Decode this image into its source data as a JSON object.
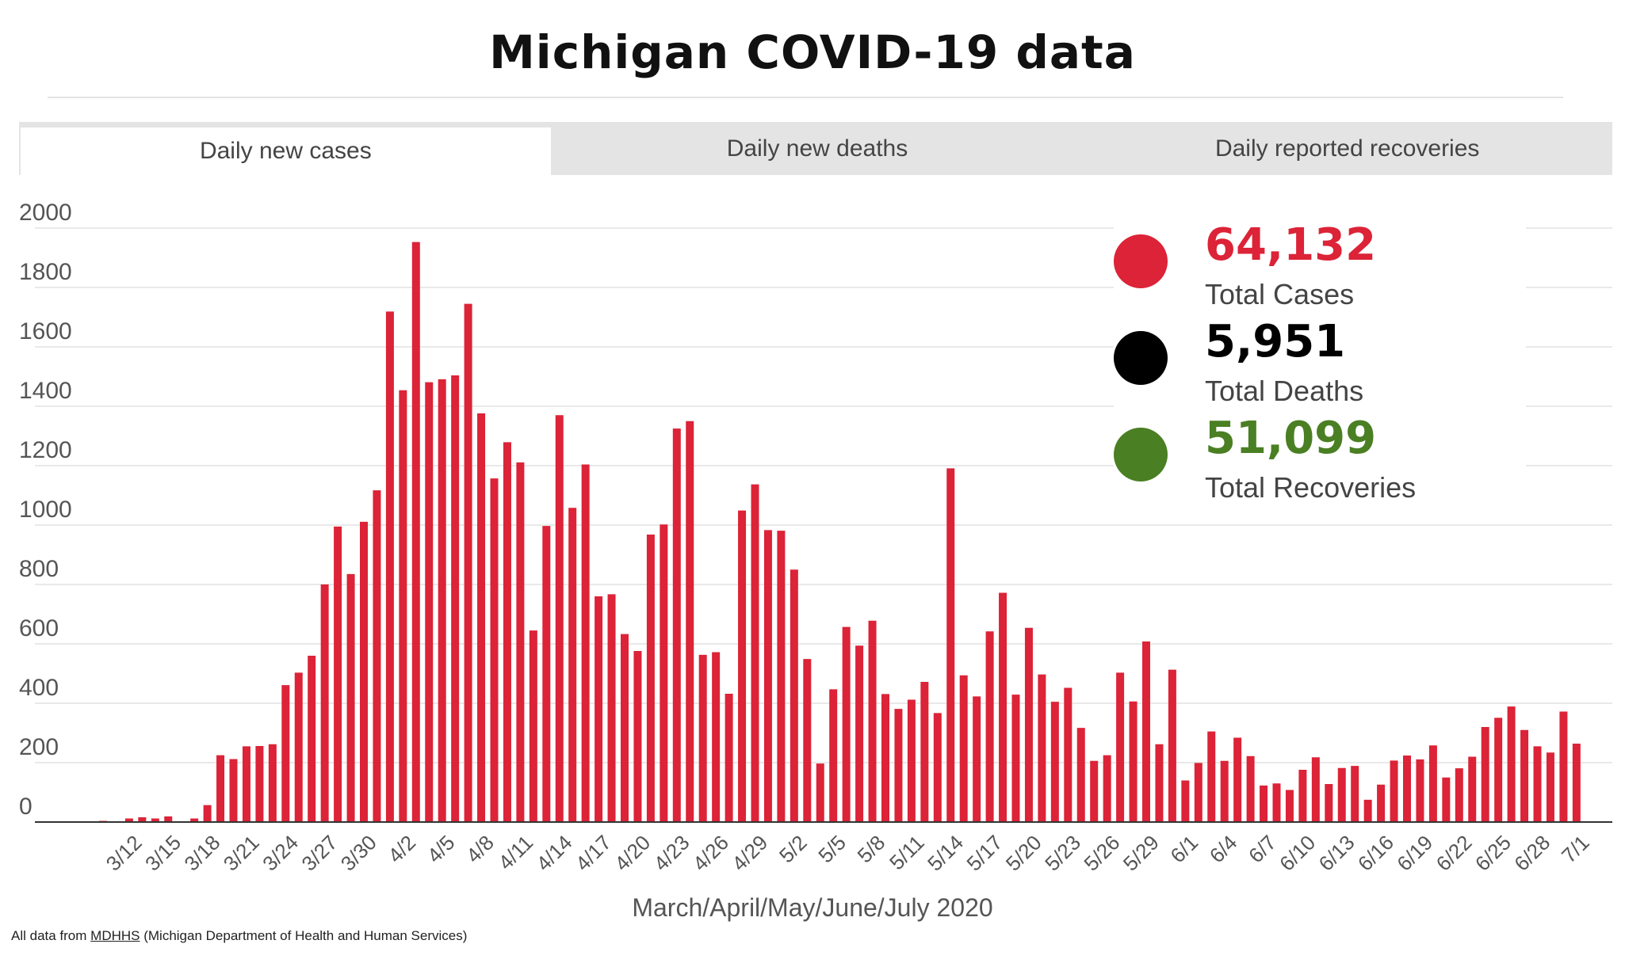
{
  "title": "Michigan COVID-19 data",
  "tabs": [
    {
      "label": "Daily new cases",
      "active": true
    },
    {
      "label": "Daily new deaths",
      "active": false
    },
    {
      "label": "Daily reported recoveries",
      "active": false
    }
  ],
  "totals": [
    {
      "value": "64,132",
      "label": "Total Cases",
      "color": "#dc2337"
    },
    {
      "value": "5,951",
      "label": "Total Deaths",
      "color": "#000000"
    },
    {
      "value": "51,099",
      "label": "Total Recoveries",
      "color": "#4a7f23"
    }
  ],
  "source": {
    "prefix": "All data from ",
    "link": "MDHHS",
    "suffix": " (Michigan Department of Health and Human Services)"
  },
  "chart_data": {
    "type": "bar",
    "xlabel": "March/April/May/June/July 2020",
    "ylabel": "",
    "ylim": [
      0,
      2000
    ],
    "yticks": [
      0,
      200,
      400,
      600,
      800,
      1000,
      1200,
      1400,
      1600,
      1800,
      2000
    ],
    "bar_color": "#dc2337",
    "grid": true,
    "tick_labels": [
      "3/12",
      "3/15",
      "3/18",
      "3/21",
      "3/24",
      "3/27",
      "3/30",
      "4/2",
      "4/5",
      "4/8",
      "4/11",
      "4/14",
      "4/17",
      "4/20",
      "4/23",
      "4/26",
      "4/29",
      "5/2",
      "5/5",
      "5/8",
      "5/11",
      "5/14",
      "5/17",
      "5/20",
      "5/23",
      "5/26",
      "5/29",
      "6/1",
      "6/4",
      "6/7",
      "6/10",
      "6/13",
      "6/16",
      "6/19",
      "6/22",
      "6/25",
      "6/28",
      "7/1"
    ],
    "categories": [
      "3/10",
      "3/11",
      "3/12",
      "3/13",
      "3/14",
      "3/15",
      "3/16",
      "3/17",
      "3/18",
      "3/19",
      "3/20",
      "3/21",
      "3/22",
      "3/23",
      "3/24",
      "3/25",
      "3/26",
      "3/27",
      "3/28",
      "3/29",
      "3/30",
      "3/31",
      "4/1",
      "4/2",
      "4/3",
      "4/4",
      "4/5",
      "4/6",
      "4/7",
      "4/8",
      "4/9",
      "4/10",
      "4/11",
      "4/12",
      "4/13",
      "4/14",
      "4/15",
      "4/16",
      "4/17",
      "4/18",
      "4/19",
      "4/20",
      "4/21",
      "4/22",
      "4/23",
      "4/24",
      "4/25",
      "4/26",
      "4/27",
      "4/28",
      "4/29",
      "4/30",
      "5/1",
      "5/2",
      "5/3",
      "5/4",
      "5/5",
      "5/6",
      "5/7",
      "5/8",
      "5/9",
      "5/10",
      "5/11",
      "5/12",
      "5/13",
      "5/14",
      "5/15",
      "5/16",
      "5/17",
      "5/18",
      "5/19",
      "5/20",
      "5/21",
      "5/22",
      "5/23",
      "5/24",
      "5/25",
      "5/26",
      "5/27",
      "5/28",
      "5/29",
      "5/30",
      "5/31",
      "6/1",
      "6/2",
      "6/3",
      "6/4",
      "6/5",
      "6/6",
      "6/7",
      "6/8",
      "6/9",
      "6/10",
      "6/11",
      "6/12",
      "6/13",
      "6/14",
      "6/15",
      "6/16",
      "6/17",
      "6/18",
      "6/19",
      "6/20",
      "6/21",
      "6/22",
      "6/23",
      "6/24",
      "6/25",
      "6/26",
      "6/27",
      "6/28",
      "6/29",
      "6/30",
      "7/1"
    ],
    "values": [
      4,
      0,
      12,
      16,
      12,
      19,
      0,
      12,
      57,
      225,
      212,
      255,
      256,
      262,
      461,
      503,
      560,
      800,
      995,
      835,
      1011,
      1117,
      1719,
      1454,
      1953,
      1481,
      1491,
      1504,
      1745,
      1376,
      1157,
      1279,
      1211,
      645,
      997,
      1370,
      1058,
      1204,
      760,
      767,
      633,
      576,
      968,
      1002,
      1325,
      1350,
      563,
      572,
      432,
      1049,
      1137,
      983,
      981,
      850,
      549,
      197,
      447,
      657,
      594,
      678,
      431,
      381,
      412,
      472,
      367,
      1191,
      494,
      423,
      642,
      772,
      429,
      654,
      497,
      405,
      452,
      317,
      206,
      225,
      503,
      406,
      608,
      262,
      513,
      140,
      199,
      305,
      206,
      284,
      222,
      123,
      130,
      108,
      176,
      218,
      128,
      182,
      189,
      75,
      126,
      207,
      224,
      211,
      258,
      150,
      181,
      220,
      320,
      351,
      389,
      310,
      255,
      234,
      372,
      264
    ]
  }
}
